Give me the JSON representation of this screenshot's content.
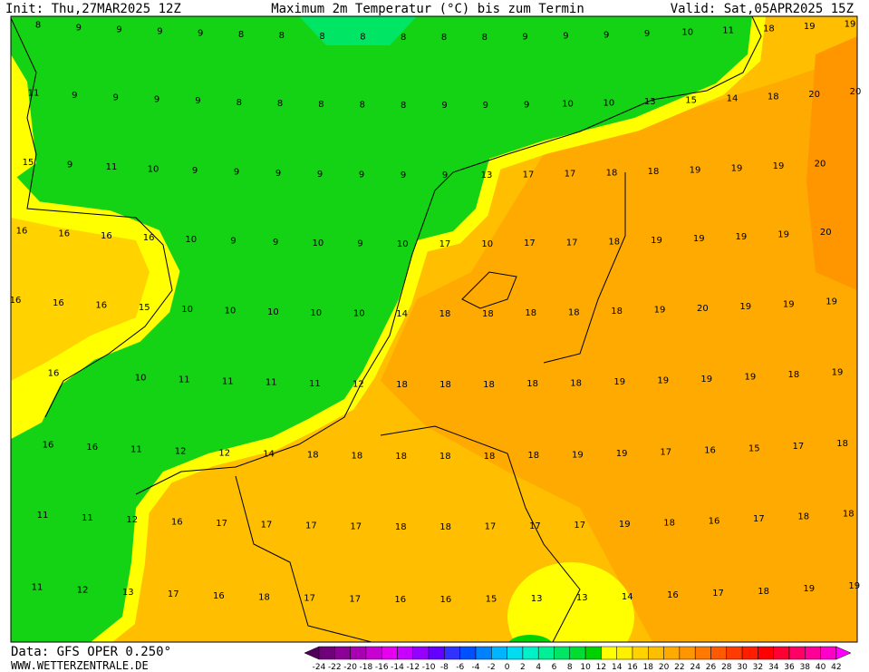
{
  "header": {
    "init": "Init: Thu,27MAR2025 12Z",
    "title": "Maximum 2m Temperatur (°C) bis zum Termin",
    "valid": "Valid: Sat,05APR2025 15Z"
  },
  "footer": {
    "data_source": "Data: GFS OPER 0.250°",
    "site": "WWW.WETTERZENTRALE.DE"
  },
  "grid_values": [
    [
      8,
      9,
      9,
      9,
      9,
      8,
      8,
      8,
      8,
      8,
      8,
      8,
      9,
      9,
      9,
      9,
      10,
      11,
      18,
      19,
      19
    ],
    [
      11,
      9,
      9,
      9,
      9,
      8,
      8,
      8,
      8,
      8,
      9,
      9,
      9,
      10,
      10,
      13,
      15,
      14,
      18,
      20,
      20
    ],
    [
      15,
      9,
      11,
      10,
      9,
      9,
      9,
      9,
      9,
      9,
      9,
      13,
      17,
      17,
      18,
      18,
      19,
      19,
      19,
      20
    ],
    [
      16,
      16,
      16,
      16,
      10,
      9,
      9,
      10,
      9,
      10,
      17,
      10,
      17,
      17,
      18,
      19,
      19,
      19,
      19,
      20
    ],
    [
      16,
      16,
      16,
      15,
      10,
      10,
      10,
      10,
      10,
      14,
      18,
      18,
      18,
      18,
      18,
      19,
      20,
      19,
      19,
      19
    ],
    [
      null,
      16,
      null,
      10,
      11,
      11,
      11,
      11,
      12,
      18,
      18,
      18,
      18,
      18,
      19,
      19,
      19,
      19,
      18,
      19
    ],
    [
      16,
      16,
      11,
      12,
      12,
      14,
      18,
      18,
      18,
      18,
      18,
      18,
      19,
      19,
      17,
      16,
      15,
      17,
      18
    ],
    [
      11,
      11,
      12,
      16,
      17,
      17,
      17,
      17,
      18,
      18,
      17,
      17,
      17,
      19,
      18,
      16,
      17,
      18,
      18
    ],
    [
      11,
      12,
      13,
      17,
      16,
      18,
      17,
      17,
      16,
      16,
      15,
      13,
      13,
      14,
      16,
      17,
      18,
      19,
      19
    ]
  ],
  "colorbar": {
    "ticks": [
      -24,
      -22,
      -20,
      -18,
      -16,
      -14,
      -12,
      -10,
      -8,
      -6,
      -4,
      -2,
      0,
      2,
      4,
      6,
      8,
      10,
      12,
      14,
      16,
      18,
      20,
      22,
      24,
      26,
      28,
      30,
      32,
      34,
      36,
      38,
      40,
      42
    ],
    "colors": [
      "#50005a",
      "#6e0078",
      "#8c0096",
      "#aa00b4",
      "#c800d2",
      "#e600f0",
      "#c800ff",
      "#9600ff",
      "#6400ff",
      "#3232ff",
      "#0050ff",
      "#0082ff",
      "#00b4ff",
      "#00dcf0",
      "#00f0c8",
      "#00f096",
      "#00e664",
      "#00dc32",
      "#00d200",
      "#ffff00",
      "#fff000",
      "#ffd200",
      "#ffbe00",
      "#ffaa00",
      "#ff9600",
      "#ff7800",
      "#ff5a00",
      "#ff3c00",
      "#ff1e00",
      "#ff0000",
      "#ff0032",
      "#ff0064",
      "#ff0096",
      "#ff00c8",
      "#ff00ff"
    ]
  }
}
